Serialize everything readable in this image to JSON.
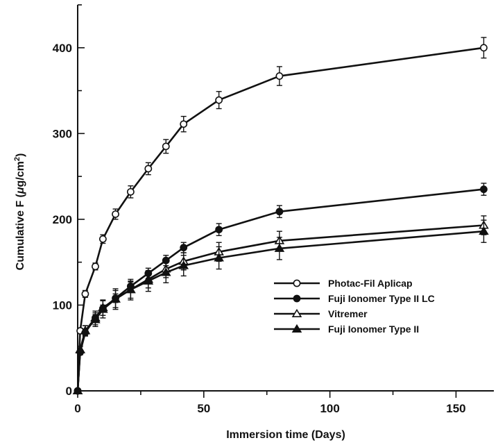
{
  "chart_data": {
    "type": "line",
    "xlabel": "Immersion time (Days)",
    "ylabel_prefix": "Cumulative F (",
    "ylabel_mu": "μ",
    "ylabel_unit": "g/cm",
    "ylabel_exp": "2",
    "ylabel_suffix": ")",
    "xlim": [
      0,
      165
    ],
    "ylim": [
      0,
      450
    ],
    "xticks": [
      0,
      50,
      100,
      150
    ],
    "yticks": [
      0,
      100,
      200,
      300,
      400
    ],
    "grid": false,
    "legend_position": "lower-right",
    "series": [
      {
        "name": "Photac-Fil Aplicap",
        "marker": "circle-open",
        "x": [
          0,
          1,
          3,
          7,
          10,
          15,
          21,
          28,
          35,
          42,
          56,
          80,
          161
        ],
        "y": [
          0,
          70,
          113,
          145,
          177,
          206,
          232,
          259,
          285,
          311,
          339,
          367,
          400
        ],
        "err": [
          0,
          3,
          4,
          4,
          5,
          6,
          7,
          7,
          8,
          9,
          10,
          11,
          12
        ]
      },
      {
        "name": "Fuji Ionomer Type II LC",
        "marker": "circle-filled",
        "x": [
          0,
          1,
          3,
          7,
          10,
          15,
          21,
          28,
          35,
          42,
          56,
          80,
          161
        ],
        "y": [
          0,
          45,
          68,
          85,
          96,
          108,
          122,
          137,
          152,
          167,
          188,
          209,
          235
        ],
        "err": [
          0,
          3,
          4,
          4,
          4,
          5,
          5,
          6,
          6,
          6,
          7,
          7,
          7
        ]
      },
      {
        "name": "Vitremer",
        "marker": "triangle-open",
        "x": [
          0,
          1,
          3,
          7,
          10,
          15,
          21,
          28,
          35,
          42,
          56,
          80,
          161
        ],
        "y": [
          0,
          48,
          70,
          85,
          97,
          107,
          118,
          130,
          142,
          151,
          162,
          175,
          193
        ],
        "err": [
          0,
          4,
          6,
          8,
          9,
          10,
          10,
          10,
          10,
          10,
          11,
          11,
          11
        ]
      },
      {
        "name": "Fuji Ionomer Type II",
        "marker": "triangle-filled",
        "x": [
          0,
          1,
          3,
          7,
          10,
          15,
          21,
          28,
          35,
          42,
          56,
          80,
          161
        ],
        "y": [
          0,
          48,
          70,
          83,
          95,
          107,
          118,
          128,
          138,
          146,
          155,
          166,
          186
        ],
        "err": [
          0,
          4,
          6,
          8,
          10,
          12,
          12,
          12,
          12,
          12,
          13,
          13,
          13
        ]
      }
    ]
  }
}
